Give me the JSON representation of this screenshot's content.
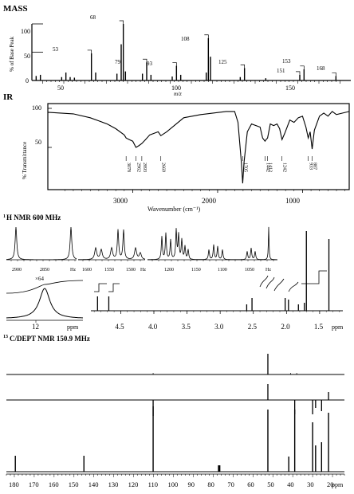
{
  "mass": {
    "title": "MASS",
    "ylabel": "% of Base Peak",
    "xlabel": "m/z",
    "y_ticks": [
      "100",
      "50",
      "0"
    ],
    "x_ticks": [
      "50",
      "100",
      "150"
    ],
    "peak_labels": [
      "53",
      "68",
      "79",
      "93",
      "108",
      "125",
      "151",
      "153",
      "168"
    ]
  },
  "ir": {
    "title": "IR",
    "ylabel": "% Transmittance",
    "xlabel": "Wavenumber (cm⁻¹)",
    "y_ticks": [
      "100",
      "50"
    ],
    "x_ticks": [
      "3000",
      "2000",
      "1000"
    ],
    "band_labels": [
      "3078",
      "2962",
      "2893",
      "2669",
      "1705",
      "1442",
      "1412",
      "1242",
      "933",
      "887"
    ]
  },
  "hnmr": {
    "title": "1H NMR 600 MHz",
    "title_sup": "1",
    "title_main": "H NMR 600 MHz",
    "scale_label": "×64",
    "x_ticks": [
      "4.5",
      "4.0",
      "3.5",
      "3.0",
      "2.5",
      "2.0",
      "1.5"
    ],
    "x_unit": "ppm",
    "inset_tick": "12",
    "inset_unit": "ppm",
    "exp1_ticks": [
      "2900",
      "2850"
    ],
    "exp2_ticks": [
      "1600",
      "1550",
      "1500"
    ],
    "exp3_ticks": [
      "1200",
      "1150",
      "1100",
      "1050"
    ],
    "hz_label": "Hz"
  },
  "cnmr": {
    "title": "13C/DEPT NMR 150.9 MHz",
    "title_sup": "13",
    "title_main": "C/DEPT NMR 150.9 MHz",
    "x_ticks": [
      "180",
      "170",
      "160",
      "150",
      "140",
      "130",
      "120",
      "110",
      "100",
      "90",
      "80",
      "70",
      "60",
      "50",
      "40",
      "30",
      "20"
    ],
    "x_unit": "ppm"
  },
  "chart_data": [
    {
      "type": "bar",
      "name": "mass",
      "x": [
        27,
        29,
        39,
        41,
        43,
        45,
        53,
        55,
        65,
        67,
        68,
        69,
        77,
        79,
        81,
        91,
        93,
        95,
        107,
        108,
        109,
        123,
        125,
        135,
        151,
        153,
        168
      ],
      "values": [
        8,
        10,
        6,
        14,
        6,
        5,
        48,
        14,
        12,
        64,
        100,
        16,
        12,
        32,
        10,
        7,
        26,
        10,
        14,
        75,
        42,
        6,
        22,
        4,
        10,
        20,
        8
      ],
      "xlim": [
        25,
        175
      ],
      "ylim": [
        0,
        100
      ]
    },
    {
      "type": "line",
      "name": "ir",
      "x": [
        4000,
        3700,
        3500,
        3300,
        3200,
        3100,
        3078,
        3040,
        3000,
        2962,
        2930,
        2893,
        2850,
        2800,
        2700,
        2669,
        2600,
        2400,
        2200,
        1900,
        1800,
        1760,
        1720,
        1705,
        1690,
        1650,
        1600,
        1500,
        1470,
        1442,
        1430,
        1412,
        1380,
        1340,
        1300,
        1270,
        1242,
        1210,
        1150,
        1100,
        1050,
        1000,
        960,
        933,
        910,
        887,
        860,
        800,
        750,
        700,
        650,
        600,
        450
      ],
      "y": [
        95,
        93,
        88,
        80,
        74,
        66,
        62,
        60,
        58,
        50,
        52,
        55,
        60,
        66,
        70,
        65,
        70,
        88,
        92,
        96,
        96,
        82,
        30,
        4,
        30,
        70,
        80,
        76,
        62,
        58,
        60,
        62,
        80,
        78,
        80,
        74,
        60,
        68,
        85,
        82,
        88,
        90,
        76,
        62,
        70,
        48,
        72,
        90,
        94,
        90,
        96,
        92,
        96
      ],
      "xlim": [
        4000,
        450
      ],
      "ylim": [
        0,
        100
      ]
    },
    {
      "type": "line",
      "name": "1h-nmr",
      "peaks_ppm": [
        4.85,
        4.68,
        2.6,
        2.52,
        2.02,
        1.97,
        1.82,
        1.73,
        1.7,
        1.36
      ],
      "heights": [
        0.18,
        0.18,
        0.08,
        0.16,
        0.16,
        0.14,
        0.08,
        0.1,
        1.0,
        0.9
      ],
      "xlim": [
        4.95,
        1.15
      ]
    },
    {
      "type": "bar",
      "name": "13c-nmr",
      "x": [
        179.5,
        145.0,
        110.2,
        77.0,
        52.5,
        42.0,
        39.0,
        30.0,
        28.5,
        25.5,
        22.0
      ],
      "values": [
        0.2,
        0.2,
        0.82,
        0.08,
        0.78,
        0.19,
        0.78,
        0.62,
        0.33,
        0.37,
        0.74
      ],
      "xlim": [
        184,
        14
      ],
      "dept90_x": [
        52.5
      ],
      "dept135_up_x": [
        52.5
      ],
      "dept135_down_x": [
        28.5,
        25.5,
        22.0
      ]
    }
  ]
}
